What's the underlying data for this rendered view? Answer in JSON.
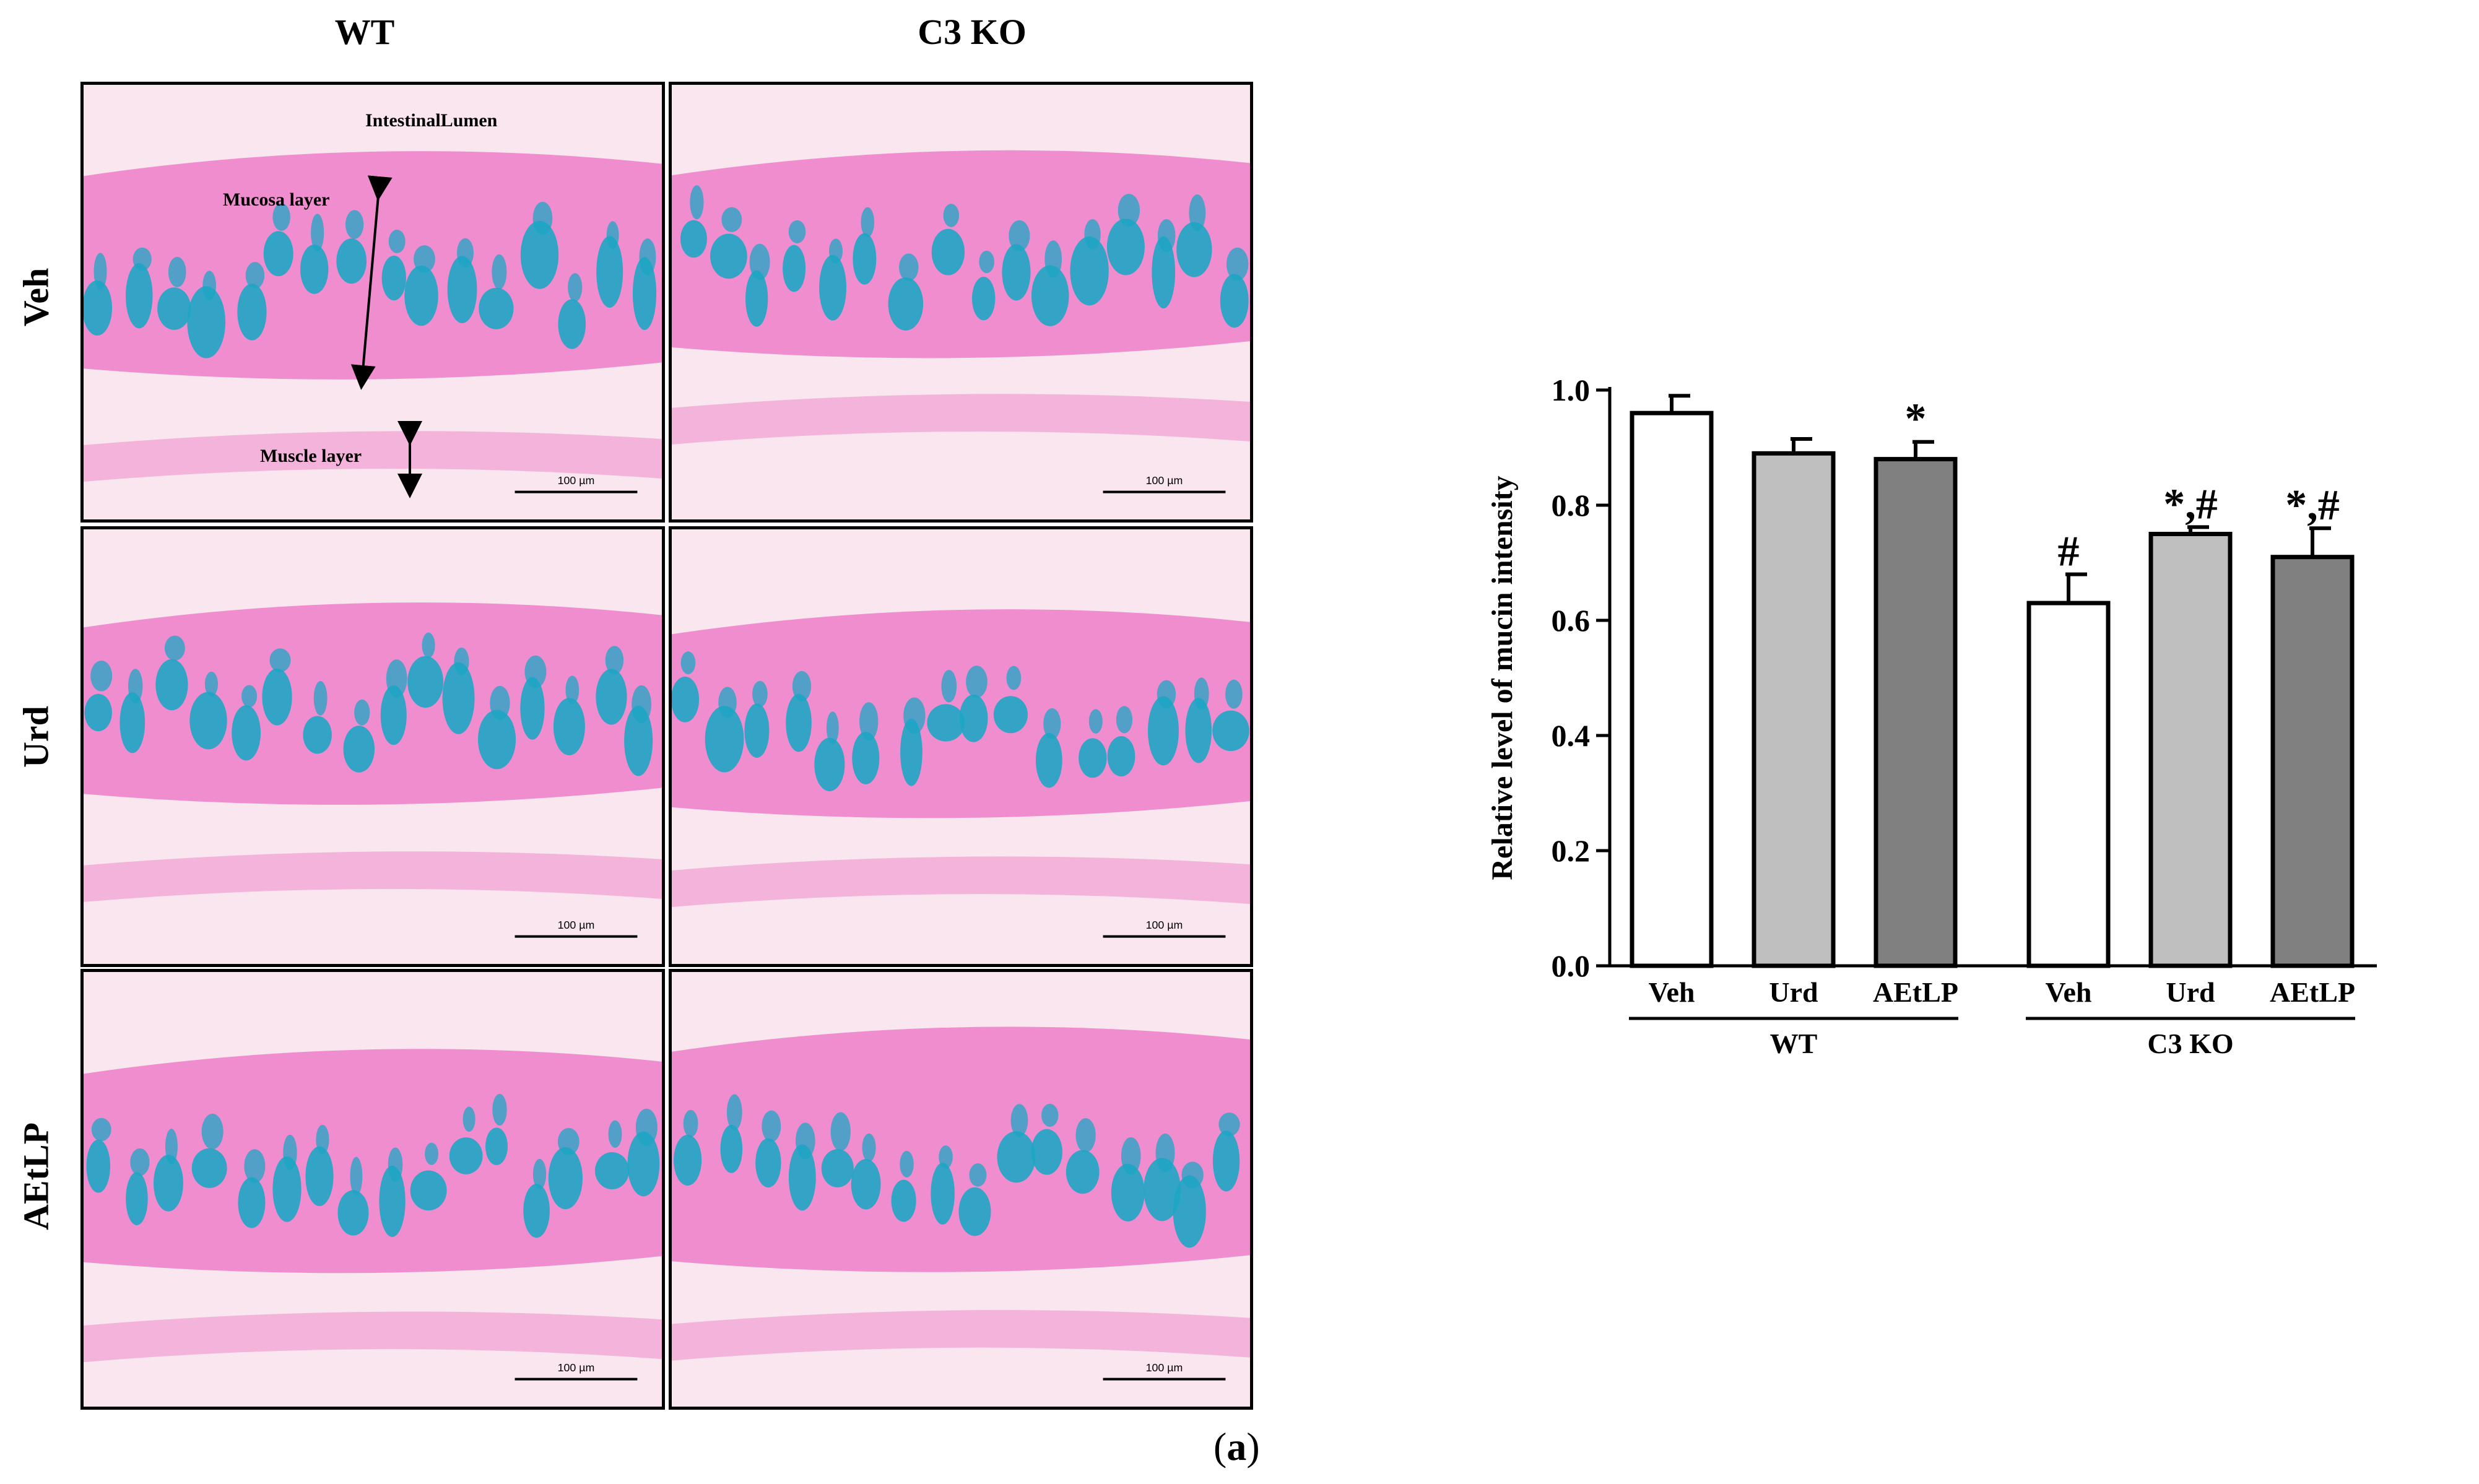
{
  "figure_label": {
    "open": "(",
    "letter": "a",
    "close": ")"
  },
  "micrographs": {
    "column_titles": [
      "WT",
      "C3 KO"
    ],
    "row_titles": [
      "Veh",
      "Urd",
      "AEtLP"
    ],
    "scale_bar": "100 µm",
    "annotations": {
      "lumen": "IntestinalLumen",
      "mucosa": "Mucosa layer",
      "muscle": "Muscle layer"
    },
    "colors": {
      "tissue_pink": "#ee7cc8",
      "mucin_blue": "#1ea6c4",
      "background": "#f9e6ee"
    }
  },
  "chart_data": {
    "type": "bar",
    "ylabel": "Relative level of mucin intensity",
    "ylim": [
      0,
      1.0
    ],
    "yticks": [
      "0.0",
      "0.2",
      "0.4",
      "0.6",
      "0.8",
      "1.0"
    ],
    "categories": [
      "Veh",
      "Urd",
      "AEtLP",
      "Veh",
      "Urd",
      "AEtLP"
    ],
    "groups": [
      {
        "name": "WT",
        "indices": [
          0,
          1,
          2
        ]
      },
      {
        "name": "C3 KO",
        "indices": [
          3,
          4,
          5
        ]
      }
    ],
    "values": [
      0.96,
      0.89,
      0.88,
      0.63,
      0.75,
      0.71
    ],
    "errors": [
      0.03,
      0.025,
      0.03,
      0.05,
      0.012,
      0.05
    ],
    "significance": [
      "",
      "",
      "*",
      "#",
      "*,#",
      "*,#"
    ],
    "bar_colors": [
      "#ffffff",
      "#bfbfbf",
      "#808080",
      "#ffffff",
      "#bfbfbf",
      "#808080"
    ]
  }
}
